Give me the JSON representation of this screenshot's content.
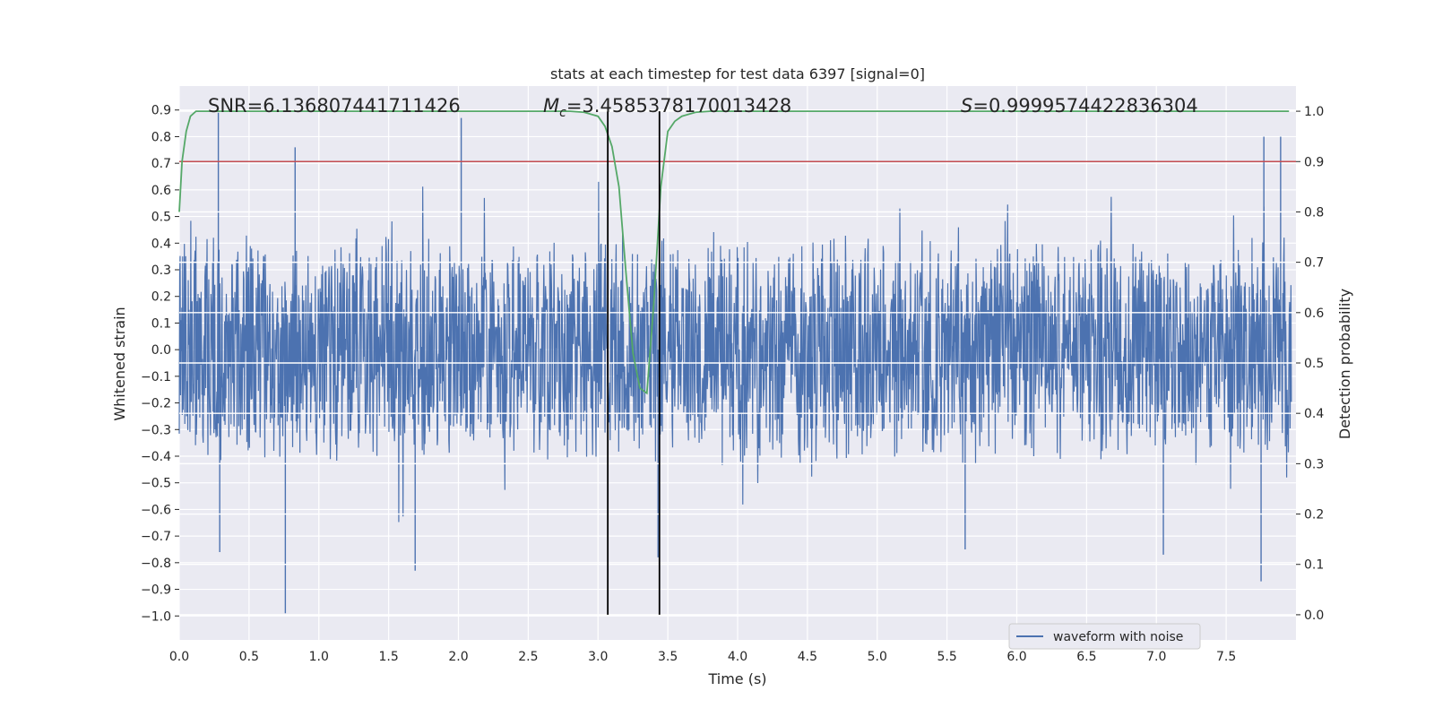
{
  "chart_data": {
    "type": "line",
    "title": "stats at each timestep for test data 6397 [signal=0]",
    "xlabel": "Time (s)",
    "ylabel_left": "Whitened strain",
    "ylabel_right": "Detection probability",
    "xlim": [
      0.0,
      8.0
    ],
    "ylim_left": [
      -1.09,
      0.99
    ],
    "ylim_right": [
      -0.05,
      1.05
    ],
    "x_ticks": [
      "0.0",
      "0.5",
      "1.0",
      "1.5",
      "2.0",
      "2.5",
      "3.0",
      "3.5",
      "4.0",
      "4.5",
      "5.0",
      "5.5",
      "6.0",
      "6.5",
      "7.0",
      "7.5"
    ],
    "y_left_ticks": [
      "0.9",
      "0.8",
      "0.7",
      "0.6",
      "0.5",
      "0.4",
      "0.3",
      "0.2",
      "0.1",
      "0.0",
      "−0.1",
      "−0.2",
      "−0.3",
      "−0.4",
      "−0.5",
      "−0.6",
      "−0.7",
      "−0.8",
      "−0.9",
      "−1.0"
    ],
    "y_right_ticks": [
      "1.0",
      "0.9",
      "0.8",
      "0.7",
      "0.6",
      "0.5",
      "0.4",
      "0.3",
      "0.2",
      "0.1",
      "0.0"
    ],
    "grid": true,
    "legend": {
      "placement": "bottom-right",
      "entries": [
        "waveform with noise"
      ]
    },
    "stats": {
      "snr": "SNR=6.136807441711426",
      "mc_symbol": "M",
      "mc_sub": "c",
      "mc_value": "=3.4585378170013428",
      "s_symbol": "S",
      "s_value": "=0.9999574422836304"
    },
    "threshold": {
      "axis": "right",
      "value": 0.9
    },
    "vertical_lines": [
      3.07,
      3.44
    ],
    "series": [
      {
        "name": "waveform with noise",
        "axis": "left",
        "kind": "noise",
        "typical_amplitude": 0.45,
        "peaks": [
          {
            "x": 0.28,
            "y": 0.89
          },
          {
            "x": 2.02,
            "y": 0.87
          },
          {
            "x": 0.83,
            "y": 0.76
          },
          {
            "x": 0.76,
            "y": -0.99
          },
          {
            "x": 0.29,
            "y": -0.76
          },
          {
            "x": 1.69,
            "y": -0.83
          },
          {
            "x": 7.77,
            "y": 0.8
          },
          {
            "x": 7.89,
            "y": 0.8
          },
          {
            "x": 7.75,
            "y": -0.87
          },
          {
            "x": 3.43,
            "y": -0.78
          },
          {
            "x": 7.05,
            "y": -0.77
          },
          {
            "x": 5.63,
            "y": -0.75
          }
        ]
      },
      {
        "name": "",
        "axis": "right",
        "kind": "line",
        "x": [
          0.0,
          0.02,
          0.05,
          0.08,
          0.12,
          0.2,
          0.5,
          1.0,
          2.0,
          2.5,
          2.8,
          2.9,
          3.0,
          3.05,
          3.1,
          3.15,
          3.2,
          3.25,
          3.3,
          3.35,
          3.4,
          3.45,
          3.5,
          3.55,
          3.6,
          3.7,
          3.8,
          4.0,
          5.0,
          6.0,
          7.0,
          7.5,
          7.95
        ],
        "y": [
          0.8,
          0.9,
          0.96,
          0.99,
          1.0,
          1.0,
          1.0,
          1.0,
          1.0,
          1.0,
          1.0,
          0.998,
          0.99,
          0.97,
          0.93,
          0.85,
          0.68,
          0.52,
          0.45,
          0.44,
          0.62,
          0.85,
          0.96,
          0.98,
          0.99,
          0.998,
          1.0,
          1.0,
          1.0,
          1.0,
          1.0,
          1.0,
          1.0
        ]
      }
    ],
    "colors": {
      "background": "#eaeaf2",
      "grid": "#ffffff",
      "waveform": "#4c72b0",
      "probability": "#55a868",
      "threshold": "#c44e52",
      "markers": "#000000"
    }
  }
}
